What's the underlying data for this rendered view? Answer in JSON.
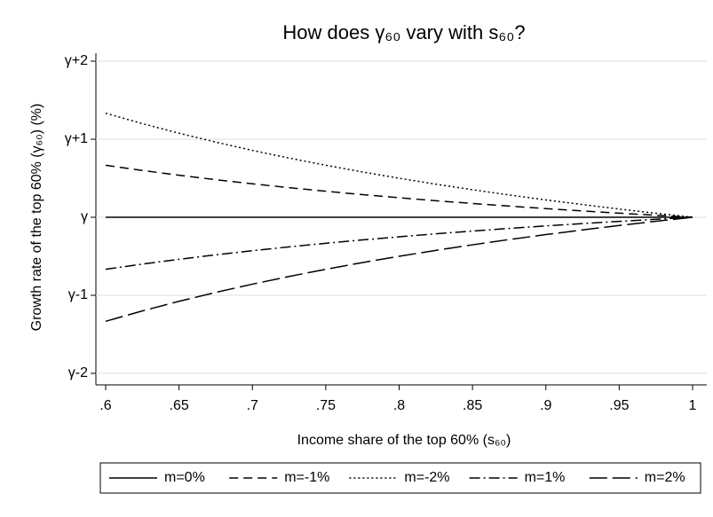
{
  "chart_data": {
    "type": "line",
    "title": "How does γ₆₀ vary with s₆₀?",
    "x_label": "Income share of the top 60% (s₆₀)",
    "y_label": "Growth rate of the top 60% (γ₆₀) (%)",
    "x": [
      0.6,
      0.625,
      0.65,
      0.675,
      0.7,
      0.725,
      0.75,
      0.775,
      0.8,
      0.825,
      0.85,
      0.875,
      0.9,
      0.925,
      0.95,
      0.975,
      1
    ],
    "series": [
      {
        "name": "m=0%",
        "color": "#000000",
        "style": "solid",
        "values": [
          0,
          0,
          0,
          0,
          0,
          0,
          0,
          0,
          0,
          0,
          0,
          0,
          0,
          0,
          0,
          0,
          0
        ]
      },
      {
        "name": "m=-1%",
        "color": "#000000",
        "style": "dash",
        "values": [
          0.6667,
          0.6,
          0.5385,
          0.4815,
          0.4286,
          0.3793,
          0.3333,
          0.2903,
          0.25,
          0.2121,
          0.1765,
          0.1429,
          0.1111,
          0.0811,
          0.0526,
          0.0256,
          0
        ]
      },
      {
        "name": "m=-2%",
        "color": "#000000",
        "style": "dot",
        "values": [
          1.3333,
          1.2,
          1.0769,
          0.963,
          0.8571,
          0.7586,
          0.6667,
          0.5806,
          0.5,
          0.4242,
          0.3529,
          0.2857,
          0.2222,
          0.1622,
          0.1053,
          0.0513,
          0
        ]
      },
      {
        "name": "m=1%",
        "color": "#000000",
        "style": "dashdot",
        "values": [
          -0.6667,
          -0.6,
          -0.5385,
          -0.4815,
          -0.4286,
          -0.3793,
          -0.3333,
          -0.2903,
          -0.25,
          -0.2121,
          -0.1765,
          -0.1429,
          -0.1111,
          -0.0811,
          -0.0526,
          -0.0256,
          0
        ]
      },
      {
        "name": "m=2%",
        "color": "#000000",
        "style": "longdash",
        "values": [
          -1.3333,
          -1.2,
          -1.0769,
          -0.963,
          -0.8571,
          -0.7586,
          -0.6667,
          -0.5806,
          -0.5,
          -0.4242,
          -0.3529,
          -0.2857,
          -0.2222,
          -0.1622,
          -0.1053,
          -0.0513,
          0
        ]
      }
    ],
    "xlim": [
      0.6,
      1
    ],
    "xticks": [
      {
        "value": 0.6,
        "label": ".6"
      },
      {
        "value": 0.65,
        "label": ".65"
      },
      {
        "value": 0.7,
        "label": ".7"
      },
      {
        "value": 0.75,
        "label": ".75"
      },
      {
        "value": 0.8,
        "label": ".8"
      },
      {
        "value": 0.85,
        "label": ".85"
      },
      {
        "value": 0.9,
        "label": ".9"
      },
      {
        "value": 0.95,
        "label": ".95"
      },
      1
    ],
    "ylim": [
      -2,
      2
    ],
    "yticks": [
      {
        "value": -2,
        "label": "γ-2"
      },
      {
        "value": -1,
        "label": "γ-1"
      },
      {
        "value": 0,
        "label": "γ"
      },
      {
        "value": 1,
        "label": "γ+1"
      },
      {
        "value": 2,
        "label": "γ+2"
      }
    ],
    "grid": true,
    "legend": "bottom"
  }
}
